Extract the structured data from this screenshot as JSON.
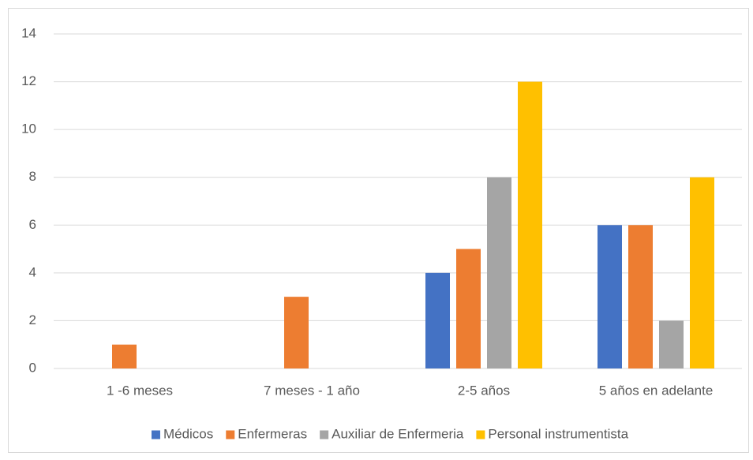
{
  "chart_data": {
    "type": "bar",
    "categories": [
      "1 -6 meses",
      "7 meses - 1 año",
      "2-5 años",
      "5 años en adelante"
    ],
    "series": [
      {
        "name": "Médicos",
        "color": "#4472c4",
        "values": [
          0,
          0,
          4,
          6
        ]
      },
      {
        "name": "Enfermeras",
        "color": "#ed7d31",
        "values": [
          1,
          3,
          5,
          6
        ]
      },
      {
        "name": "Auxiliar de Enfermeria",
        "color": "#a5a5a5",
        "values": [
          0,
          0,
          8,
          2
        ]
      },
      {
        "name": "Personal instrumentista",
        "color": "#ffc000",
        "values": [
          0,
          0,
          12,
          8
        ]
      }
    ],
    "ylim": [
      0,
      14
    ],
    "yticks": [
      0,
      2,
      4,
      6,
      8,
      10,
      12,
      14
    ],
    "grid": true,
    "legend": "bottom"
  }
}
